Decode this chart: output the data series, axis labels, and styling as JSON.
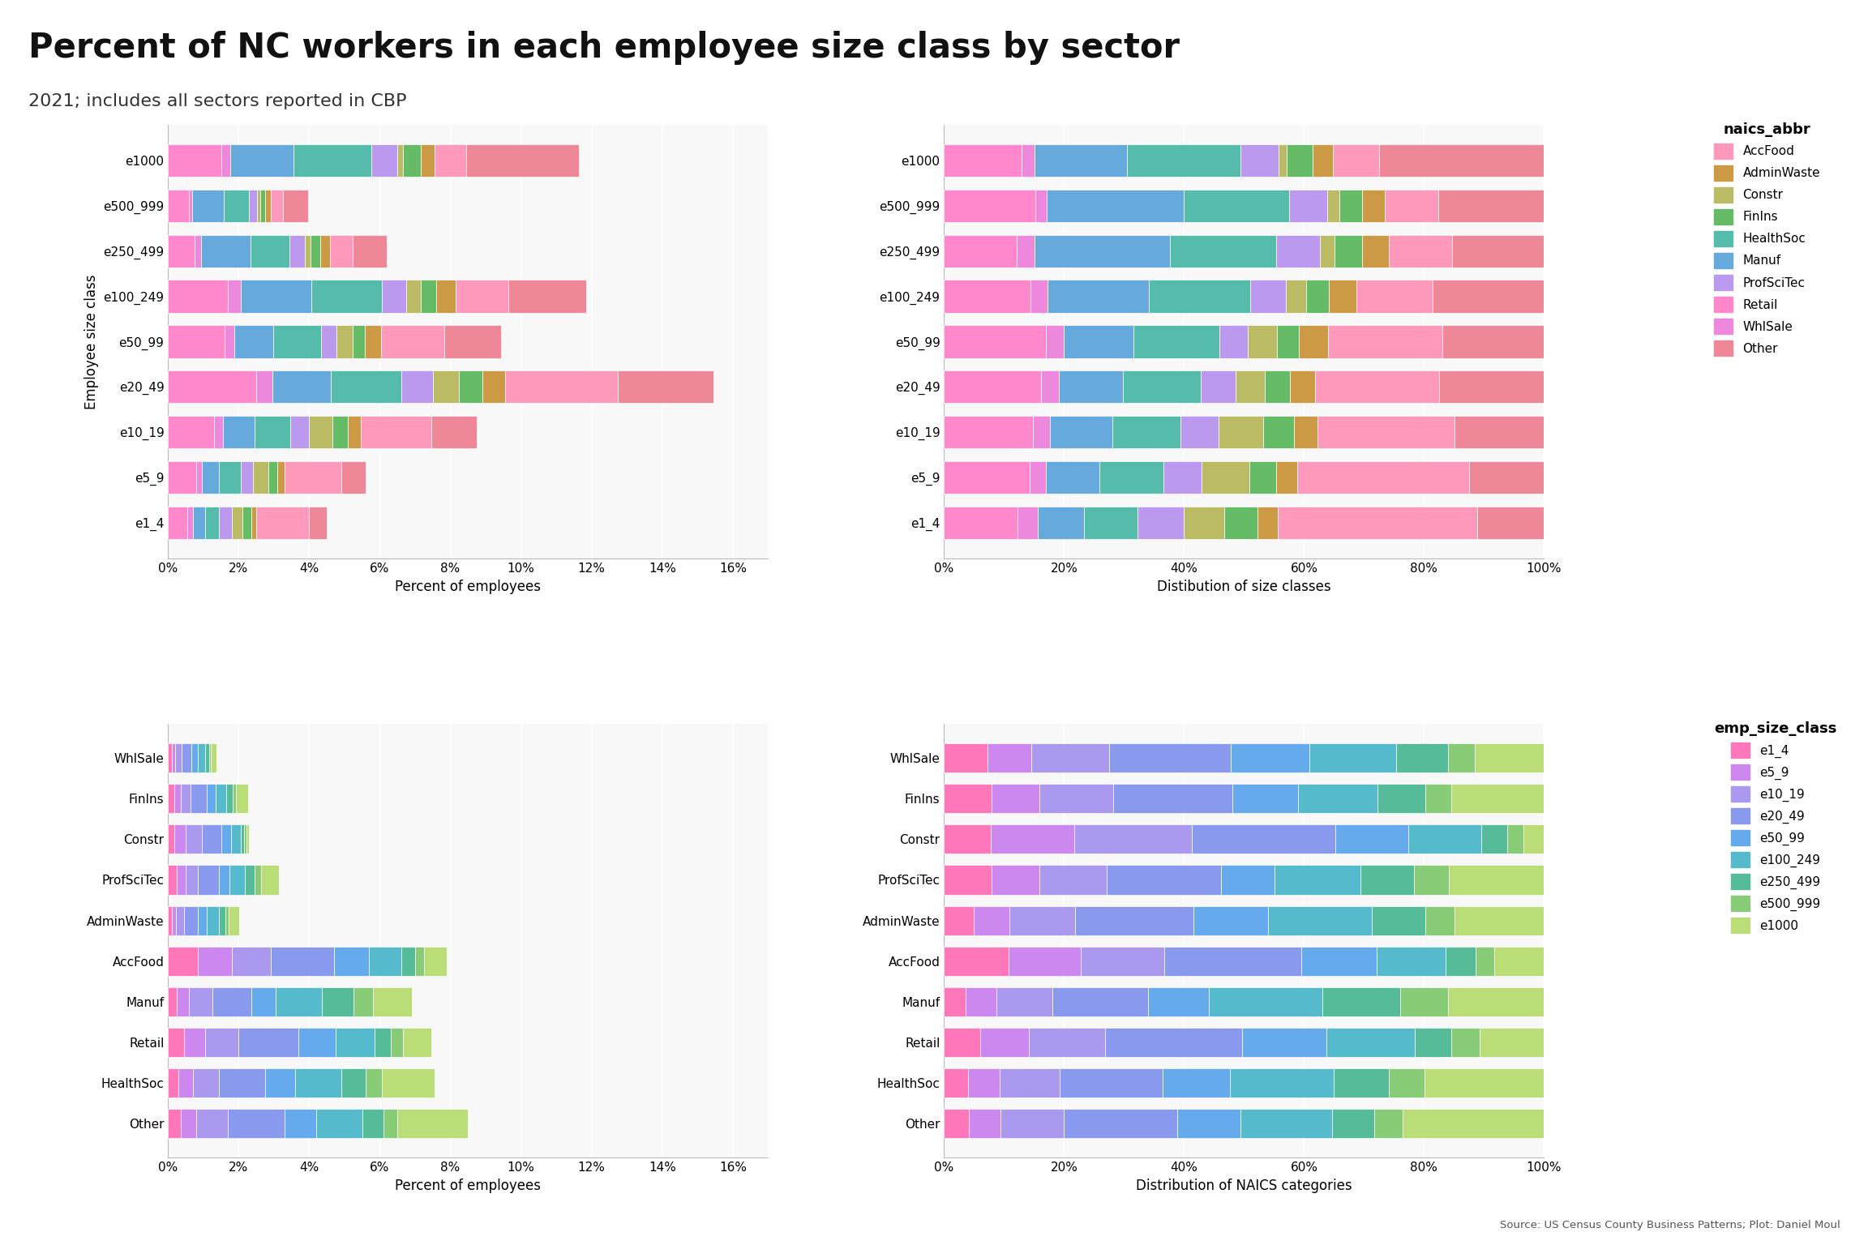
{
  "title": "Percent of NC workers in each employee size class by sector",
  "subtitle": "2021; includes all sectors reported in CBP",
  "source": "Source: US Census County Business Patterns; Plot: Daniel Moul",
  "size_classes": [
    "e1_4",
    "e5_9",
    "e10_19",
    "e20_49",
    "e50_99",
    "e100_249",
    "e250_499",
    "e500_999",
    "e1000"
  ],
  "naics_sectors": [
    "Retail",
    "WhlSale",
    "Manuf",
    "HealthSoc",
    "ProfSciTec",
    "Constr",
    "FinIns",
    "AdminWaste",
    "AccFood",
    "Other"
  ],
  "naics_colors": {
    "AccFood": "#FF99BB",
    "AdminWaste": "#CC9944",
    "Constr": "#BBBB66",
    "FinIns": "#66BB66",
    "HealthSoc": "#55BBAA",
    "Manuf": "#66AADD",
    "ProfSciTec": "#BB99EE",
    "Retail": "#FF88CC",
    "WhlSale": "#EE88DD",
    "Other": "#EE8899"
  },
  "naics_legend_order": [
    "AccFood",
    "AdminWaste",
    "Constr",
    "FinIns",
    "HealthSoc",
    "Manuf",
    "ProfSciTec",
    "Retail",
    "WhlSale",
    "Other"
  ],
  "size_class_colors": {
    "e1_4": "#FF77BB",
    "e5_9": "#CC88EE",
    "e10_19": "#AA99EE",
    "e20_49": "#8899EE",
    "e50_99": "#66AAEE",
    "e100_249": "#55BBCC",
    "e250_499": "#55BB99",
    "e500_999": "#88CC77",
    "e1000": "#BBDD77"
  },
  "plot1_data": {
    "e1_4": {
      "AccFood": 1.5,
      "AdminWaste": 0.15,
      "Constr": 0.3,
      "FinIns": 0.25,
      "HealthSoc": 0.4,
      "Manuf": 0.35,
      "ProfSciTec": 0.35,
      "Retail": 0.55,
      "WhlSale": 0.15,
      "Other": 0.5
    },
    "e5_9": {
      "AccFood": 1.6,
      "AdminWaste": 0.2,
      "Constr": 0.45,
      "FinIns": 0.25,
      "HealthSoc": 0.6,
      "Manuf": 0.5,
      "ProfSciTec": 0.35,
      "Retail": 0.8,
      "WhlSale": 0.15,
      "Other": 0.7
    },
    "e10_19": {
      "AccFood": 2.0,
      "AdminWaste": 0.35,
      "Constr": 0.65,
      "FinIns": 0.45,
      "HealthSoc": 1.0,
      "Manuf": 0.9,
      "ProfSciTec": 0.55,
      "Retail": 1.3,
      "WhlSale": 0.25,
      "Other": 1.3
    },
    "e20_49": {
      "AccFood": 3.2,
      "AdminWaste": 0.65,
      "Constr": 0.75,
      "FinIns": 0.65,
      "HealthSoc": 2.0,
      "Manuf": 1.65,
      "ProfSciTec": 0.9,
      "Retail": 2.5,
      "WhlSale": 0.45,
      "Other": 2.7
    },
    "e50_99": {
      "AccFood": 1.8,
      "AdminWaste": 0.45,
      "Constr": 0.45,
      "FinIns": 0.35,
      "HealthSoc": 1.35,
      "Manuf": 1.1,
      "ProfSciTec": 0.45,
      "Retail": 1.6,
      "WhlSale": 0.28,
      "Other": 1.6
    },
    "e100_249": {
      "AccFood": 1.5,
      "AdminWaste": 0.55,
      "Constr": 0.4,
      "FinIns": 0.45,
      "HealthSoc": 2.0,
      "Manuf": 2.0,
      "ProfSciTec": 0.7,
      "Retail": 1.7,
      "WhlSale": 0.35,
      "Other": 2.2
    },
    "e250_499": {
      "AccFood": 0.65,
      "AdminWaste": 0.28,
      "Constr": 0.15,
      "FinIns": 0.28,
      "HealthSoc": 1.1,
      "Manuf": 1.4,
      "ProfSciTec": 0.45,
      "Retail": 0.75,
      "WhlSale": 0.18,
      "Other": 0.95
    },
    "e500_999": {
      "AccFood": 0.35,
      "AdminWaste": 0.15,
      "Constr": 0.08,
      "FinIns": 0.15,
      "HealthSoc": 0.7,
      "Manuf": 0.9,
      "ProfSciTec": 0.25,
      "Retail": 0.6,
      "WhlSale": 0.08,
      "Other": 0.7
    },
    "e1000": {
      "AccFood": 0.9,
      "AdminWaste": 0.4,
      "Constr": 0.15,
      "FinIns": 0.5,
      "HealthSoc": 2.2,
      "Manuf": 1.8,
      "ProfSciTec": 0.75,
      "Retail": 1.5,
      "WhlSale": 0.25,
      "Other": 3.2
    }
  },
  "plot3_data": {
    "Other": {
      "e1_4": 0.35,
      "e5_9": 0.45,
      "e10_19": 0.9,
      "e20_49": 1.6,
      "e50_99": 0.9,
      "e100_249": 1.3,
      "e250_499": 0.6,
      "e500_999": 0.4,
      "e1000": 2.0
    },
    "HealthSoc": {
      "e1_4": 0.3,
      "e5_9": 0.4,
      "e10_19": 0.75,
      "e20_49": 1.3,
      "e50_99": 0.85,
      "e100_249": 1.3,
      "e250_499": 0.7,
      "e500_999": 0.45,
      "e1000": 1.5
    },
    "Retail": {
      "e1_4": 0.45,
      "e5_9": 0.6,
      "e10_19": 0.95,
      "e20_49": 1.7,
      "e50_99": 1.05,
      "e100_249": 1.1,
      "e250_499": 0.45,
      "e500_999": 0.35,
      "e1000": 0.8
    },
    "Manuf": {
      "e1_4": 0.25,
      "e5_9": 0.35,
      "e10_19": 0.65,
      "e20_49": 1.1,
      "e50_99": 0.7,
      "e100_249": 1.3,
      "e250_499": 0.9,
      "e500_999": 0.55,
      "e1000": 1.1
    },
    "AccFood": {
      "e1_4": 0.85,
      "e5_9": 0.95,
      "e10_19": 1.1,
      "e20_49": 1.8,
      "e50_99": 1.0,
      "e100_249": 0.9,
      "e250_499": 0.4,
      "e500_999": 0.25,
      "e1000": 0.65
    },
    "AdminWaste": {
      "e1_4": 0.1,
      "e5_9": 0.12,
      "e10_19": 0.22,
      "e20_49": 0.4,
      "e50_99": 0.25,
      "e100_249": 0.35,
      "e250_499": 0.18,
      "e500_999": 0.1,
      "e1000": 0.3
    },
    "ProfSciTec": {
      "e1_4": 0.25,
      "e5_9": 0.25,
      "e10_19": 0.35,
      "e20_49": 0.6,
      "e50_99": 0.28,
      "e100_249": 0.45,
      "e250_499": 0.28,
      "e500_999": 0.18,
      "e1000": 0.5
    },
    "Constr": {
      "e1_4": 0.18,
      "e5_9": 0.32,
      "e10_19": 0.45,
      "e20_49": 0.55,
      "e50_99": 0.28,
      "e100_249": 0.28,
      "e250_499": 0.1,
      "e500_999": 0.06,
      "e1000": 0.08
    },
    "FinIns": {
      "e1_4": 0.18,
      "e5_9": 0.18,
      "e10_19": 0.28,
      "e20_49": 0.45,
      "e50_99": 0.25,
      "e100_249": 0.3,
      "e250_499": 0.18,
      "e500_999": 0.1,
      "e1000": 0.35
    },
    "WhlSale": {
      "e1_4": 0.1,
      "e5_9": 0.1,
      "e10_19": 0.18,
      "e20_49": 0.28,
      "e50_99": 0.18,
      "e100_249": 0.2,
      "e250_499": 0.12,
      "e500_999": 0.06,
      "e1000": 0.16
    }
  },
  "naics_order_bottom": [
    "Other",
    "HealthSoc",
    "Retail",
    "Manuf",
    "AccFood",
    "AdminWaste",
    "ProfSciTec",
    "Constr",
    "FinIns",
    "WhlSale"
  ],
  "background_color": "#FFFFFF",
  "panel_bg": "#F8F8F8",
  "grid_color": "#FFFFFF"
}
